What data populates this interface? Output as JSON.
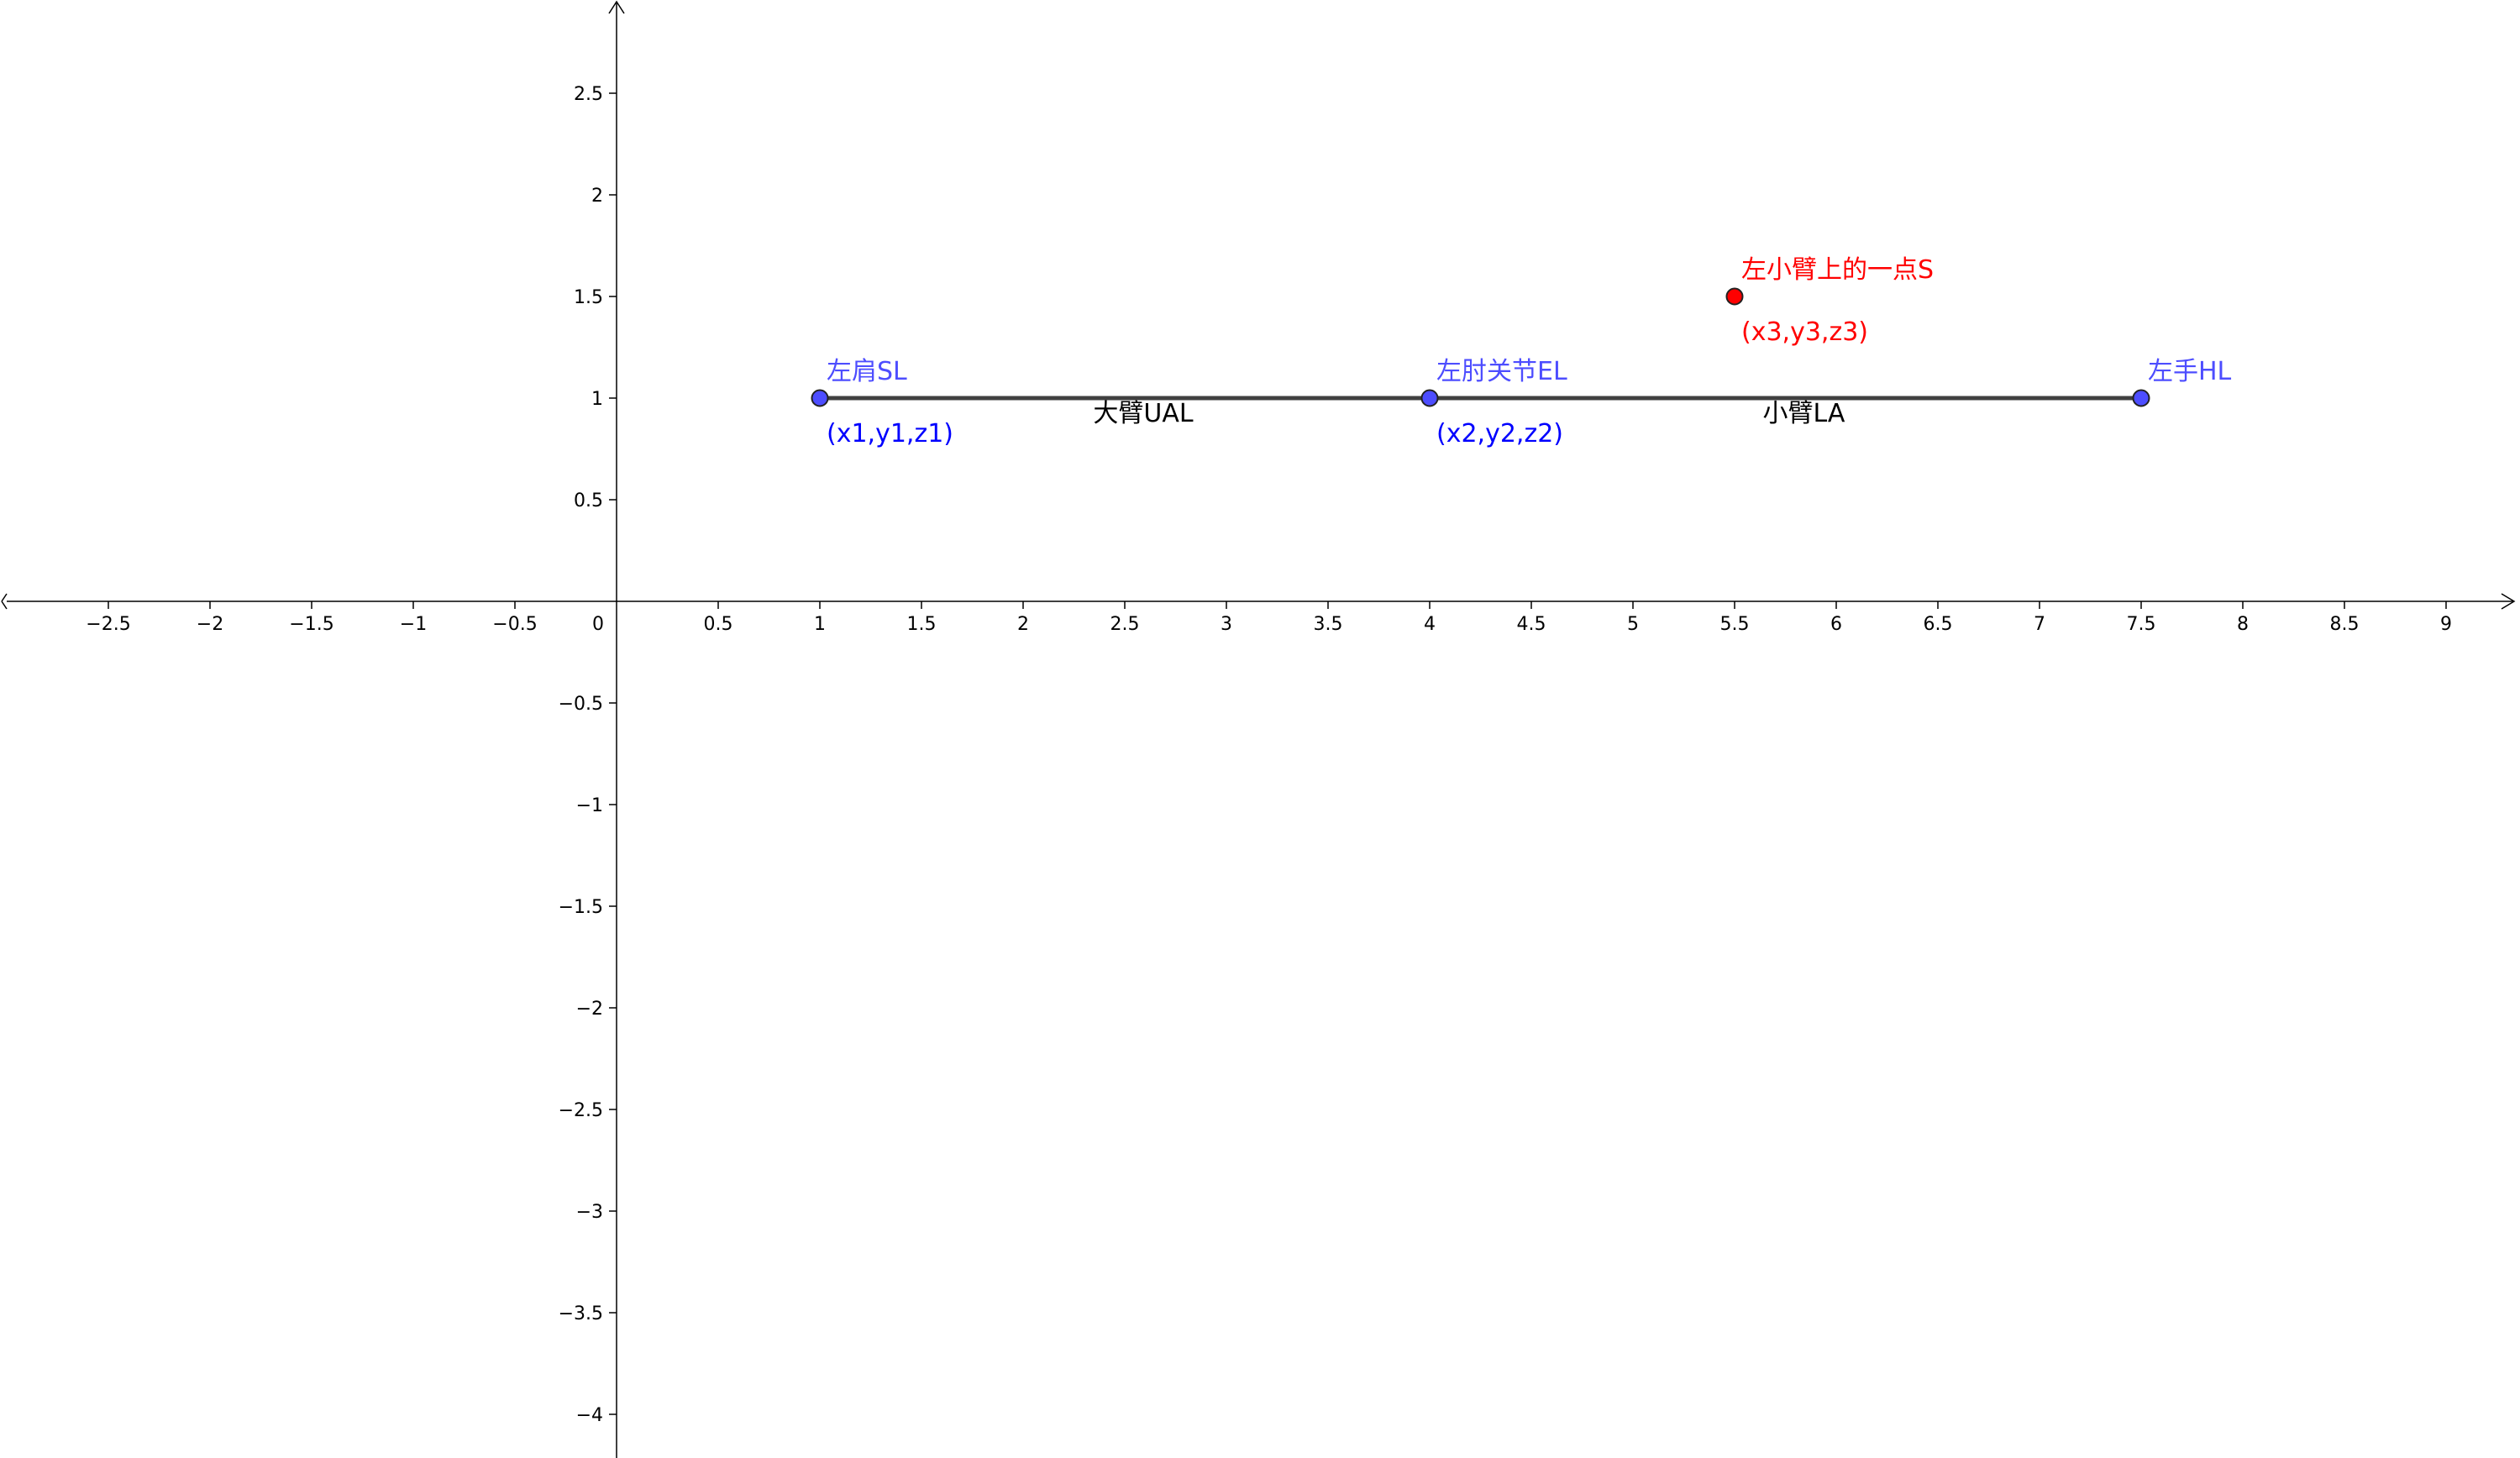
{
  "chart_data": {
    "type": "scatter",
    "grid": false,
    "xlim": [
      -3.0,
      9.4
    ],
    "ylim": [
      -4.2,
      2.95
    ],
    "x_ticks": [
      -2.5,
      -2,
      -1.5,
      -1,
      -0.5,
      0.5,
      1,
      1.5,
      2,
      2.5,
      3,
      3.5,
      4,
      4.5,
      5,
      5.5,
      6,
      6.5,
      7,
      7.5,
      8,
      8.5,
      9
    ],
    "x_tick_labels": [
      "−2.5",
      "−2",
      "−1.5",
      "−1",
      "−0.5",
      "0.5",
      "1",
      "1.5",
      "2",
      "2.5",
      "3",
      "3.5",
      "4",
      "4.5",
      "5",
      "5.5",
      "6",
      "6.5",
      "7",
      "7.5",
      "8",
      "8.5",
      "9"
    ],
    "y_ticks": [
      2.5,
      2,
      1.5,
      1,
      0.5,
      -0.5,
      -1,
      -1.5,
      -2,
      -2.5,
      -3,
      -3.5,
      -4
    ],
    "y_tick_labels": [
      "2.5",
      "2",
      "1.5",
      "1",
      "0.5",
      "−0.5",
      "−1",
      "−1.5",
      "−2",
      "−2.5",
      "−3",
      "−3.5",
      "−4"
    ],
    "origin_label": "0",
    "points": [
      {
        "id": "shoulder",
        "x": 1,
        "y": 1,
        "name": "左肩SL",
        "coords": "(x1,y1,z1)",
        "color": "#4d4dff"
      },
      {
        "id": "elbow",
        "x": 4,
        "y": 1,
        "name": "左肘关节EL",
        "coords": "(x2,y2,z2)",
        "color": "#4d4dff"
      },
      {
        "id": "hand",
        "x": 7.5,
        "y": 1,
        "name": "左手HL",
        "coords": "",
        "color": "#4d4dff"
      },
      {
        "id": "forearm-point",
        "x": 5.5,
        "y": 1.5,
        "name": "左小臂上的一点S",
        "coords": "(x3,y3,z3)",
        "color": "#ff0000"
      }
    ],
    "segments": [
      {
        "id": "upper-arm",
        "from": "shoulder",
        "to": "elbow",
        "label": "大臂UAL"
      },
      {
        "id": "forearm",
        "from": "elbow",
        "to": "hand",
        "label": "小臂LA"
      }
    ],
    "colors": {
      "axis": "#000000",
      "segment": "#404040",
      "blue_text": "#4d4dff",
      "blue_coords": "#0000ff",
      "red": "#ff0000"
    }
  }
}
